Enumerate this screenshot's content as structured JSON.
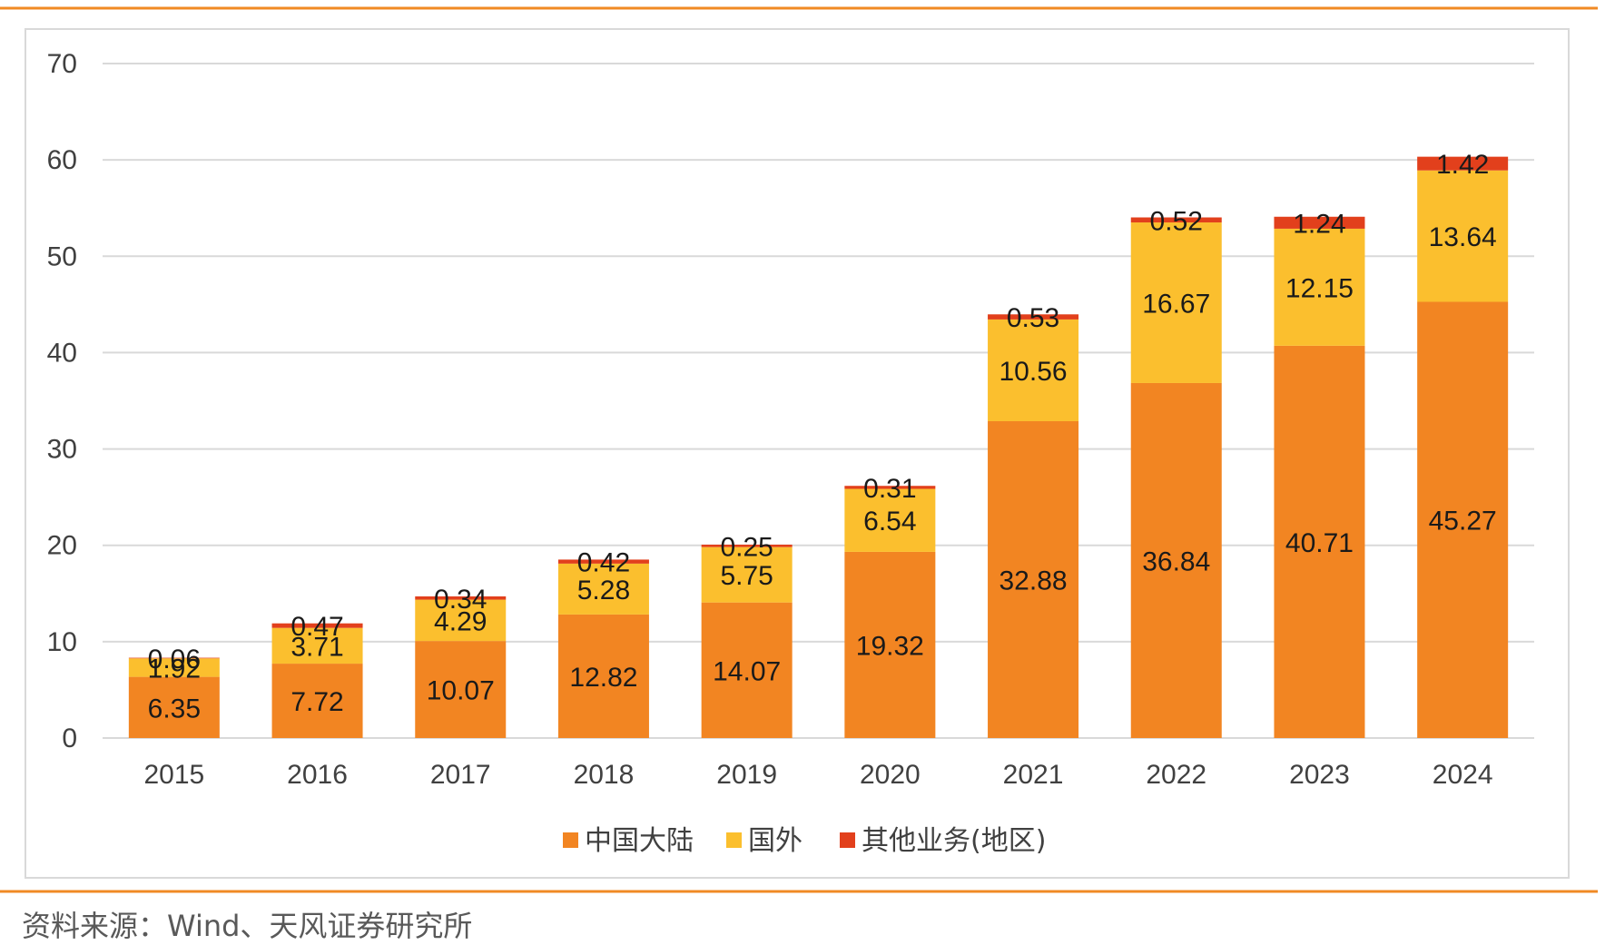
{
  "source_text": "资料来源：Wind、天风证券研究所",
  "colors": {
    "accent_rule": "#f08a24",
    "frame": "#d9d9d9",
    "grid": "#d9d9d9"
  },
  "chart_data": {
    "type": "bar",
    "stacked": true,
    "title": "",
    "xlabel": "",
    "ylabel": "",
    "ylim": [
      0,
      70
    ],
    "yticks": [
      0,
      10,
      20,
      30,
      40,
      50,
      60,
      70
    ],
    "grid": true,
    "legend_position": "bottom",
    "categories": [
      "2015",
      "2016",
      "2017",
      "2018",
      "2019",
      "2020",
      "2021",
      "2022",
      "2023",
      "2024"
    ],
    "series": [
      {
        "name": "中国大陆",
        "color": "#f28522",
        "values": [
          6.35,
          7.72,
          10.07,
          12.82,
          14.07,
          19.32,
          32.88,
          36.84,
          40.71,
          45.27
        ]
      },
      {
        "name": "国外",
        "color": "#fbbf2e",
        "values": [
          1.92,
          3.71,
          4.29,
          5.28,
          5.75,
          6.54,
          10.56,
          16.67,
          12.15,
          13.64
        ]
      },
      {
        "name": "其他业务(地区)",
        "color": "#e2401c",
        "values": [
          0.06,
          0.47,
          0.34,
          0.42,
          0.25,
          0.31,
          0.53,
          0.52,
          1.24,
          1.42
        ]
      }
    ]
  }
}
